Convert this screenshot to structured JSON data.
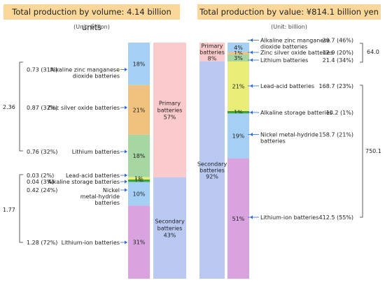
{
  "chart_data": [
    {
      "type": "stacked-bar",
      "title": "Total production by volume: 4.14 billion units",
      "unit": "(Unit: billion)",
      "detail_bar": [
        {
          "label": "Alkaline zinc manganese dioxide batteries",
          "value": "0.73 (31%)",
          "pct": 18,
          "pct_label": "18%",
          "color": "#a6cff5"
        },
        {
          "label": "Zinc silver oxide batteries",
          "value": "0.87 (37%)",
          "pct": 21,
          "pct_label": "21%",
          "color": "#f0c27e"
        },
        {
          "label": "Lithium batteries",
          "value": "0.76 (32%)",
          "pct": 18,
          "pct_label": "18%",
          "color": "#a6d6a1"
        },
        {
          "label": "Lead-acid batteries",
          "value": "0.03 (2%)",
          "pct": 1,
          "pct_label": "1%",
          "color": "#e8ee76"
        },
        {
          "label": "Alkaline storage batteries",
          "value": "0.04 (3%)",
          "pct": 1,
          "pct_label": "1%",
          "color": "#3aa33a"
        },
        {
          "label": "Nickel metal-hydride batteries",
          "value": "0.42 (24%)",
          "pct": 10,
          "pct_label": "10%",
          "color": "#a6cff5"
        },
        {
          "label": "Lithium-ion batteries",
          "value": "1.28 (72%)",
          "pct": 31,
          "pct_label": "31%",
          "color": "#d9a3e0"
        }
      ],
      "summary_bar": [
        {
          "label": "Primary batteries",
          "pct": 57,
          "pct_label": "57%",
          "color": "#fbcaca"
        },
        {
          "label": "Secondary batteries",
          "pct": 43,
          "pct_label": "43%",
          "color": "#b9c9f2"
        }
      ],
      "group_totals": [
        {
          "value": "2.36",
          "group": "Primary batteries"
        },
        {
          "value": "1.77",
          "group": "Secondary batteries"
        }
      ]
    },
    {
      "type": "stacked-bar",
      "title": "Total production by value: ¥814.1 billion yen",
      "unit": "(Unit: billion)",
      "summary_bar": [
        {
          "label": "Primary batteries",
          "pct": 8,
          "pct_label": "8%",
          "color": "#fbcaca"
        },
        {
          "label": "Secondary batteries",
          "pct": 92,
          "pct_label": "92%",
          "color": "#b9c9f2"
        }
      ],
      "detail_bar": [
        {
          "label": "Alkaline zinc manganese dioxide batteries",
          "value": "29.7 (46%)",
          "pct": 4,
          "pct_label": "4%",
          "color": "#a6cff5"
        },
        {
          "label": "Zinc silver oxide batteries",
          "value": "12.9 (20%)",
          "pct": 1,
          "pct_label": "1%",
          "color": "#f0c27e"
        },
        {
          "label": "Lithium batteries",
          "value": "21.4 (34%)",
          "pct": 3,
          "pct_label": "3%",
          "color": "#a6d6a1"
        },
        {
          "label": "Lead-acid batteries",
          "value": "168.7 (23%)",
          "pct": 21,
          "pct_label": "21%",
          "color": "#e8ee76"
        },
        {
          "label": "Alkaline storage batteries",
          "value": "10.2 (1%)",
          "pct": 1,
          "pct_label": "1%",
          "color": "#3aa33a"
        },
        {
          "label": "Nickel metal-hydride batteries",
          "value": "158.7 (21%)",
          "pct": 19,
          "pct_label": "19%",
          "color": "#a6cff5"
        },
        {
          "label": "Lithium-ion batteries",
          "value": "412.5 (55%)",
          "pct": 51,
          "pct_label": "51%",
          "color": "#d9a3e0"
        }
      ],
      "group_totals": [
        {
          "value": "64.0",
          "group": "Primary batteries"
        },
        {
          "value": "750.1",
          "group": "Secondary batteries"
        }
      ]
    }
  ]
}
